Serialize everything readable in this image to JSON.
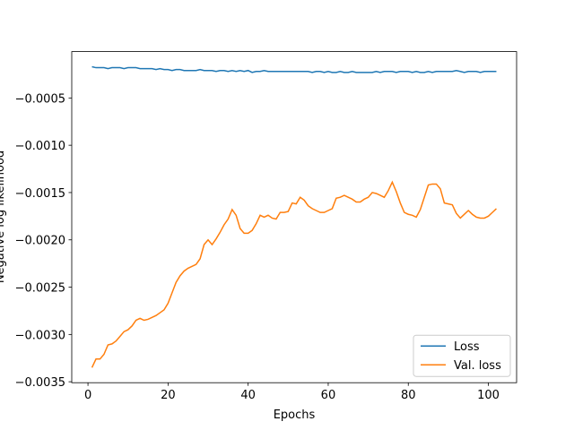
{
  "chart_data": {
    "type": "line",
    "x_label": "Epochs",
    "y_label": "Negative log likelihood",
    "x": [
      1,
      2,
      3,
      4,
      5,
      6,
      7,
      8,
      9,
      10,
      11,
      12,
      13,
      14,
      15,
      16,
      17,
      18,
      19,
      20,
      21,
      22,
      23,
      24,
      25,
      26,
      27,
      28,
      29,
      30,
      31,
      32,
      33,
      34,
      35,
      36,
      37,
      38,
      39,
      40,
      41,
      42,
      43,
      44,
      45,
      46,
      47,
      48,
      49,
      50,
      51,
      52,
      53,
      54,
      55,
      56,
      57,
      58,
      59,
      60,
      61,
      62,
      63,
      64,
      65,
      66,
      67,
      68,
      69,
      70,
      71,
      72,
      73,
      74,
      75,
      76,
      77,
      78,
      79,
      80,
      81,
      82,
      83,
      84,
      85,
      86,
      87,
      88,
      89,
      90,
      91,
      92,
      93,
      94,
      95,
      96,
      97,
      98,
      99,
      100,
      101,
      102
    ],
    "series": [
      {
        "name": "Loss",
        "color": "#1f77b4",
        "values": [
          -0.00017,
          -0.00018,
          -0.00018,
          -0.00018,
          -0.00019,
          -0.00018,
          -0.00018,
          -0.00018,
          -0.00019,
          -0.00018,
          -0.00018,
          -0.00018,
          -0.00019,
          -0.00019,
          -0.00019,
          -0.00019,
          -0.0002,
          -0.00019,
          -0.0002,
          -0.0002,
          -0.00021,
          -0.0002,
          -0.0002,
          -0.00021,
          -0.00021,
          -0.00021,
          -0.00021,
          -0.0002,
          -0.00021,
          -0.00021,
          -0.00021,
          -0.00022,
          -0.00021,
          -0.00021,
          -0.00022,
          -0.00021,
          -0.00022,
          -0.00021,
          -0.00022,
          -0.00021,
          -0.00023,
          -0.00022,
          -0.00022,
          -0.00021,
          -0.00022,
          -0.00022,
          -0.00022,
          -0.00022,
          -0.00022,
          -0.00022,
          -0.00022,
          -0.00022,
          -0.00022,
          -0.00022,
          -0.00022,
          -0.00023,
          -0.00022,
          -0.00022,
          -0.00023,
          -0.00022,
          -0.00023,
          -0.00023,
          -0.00022,
          -0.00023,
          -0.00023,
          -0.00022,
          -0.00023,
          -0.00023,
          -0.00023,
          -0.00023,
          -0.00023,
          -0.00022,
          -0.00023,
          -0.00022,
          -0.00022,
          -0.00022,
          -0.00023,
          -0.00022,
          -0.00022,
          -0.00022,
          -0.00023,
          -0.00022,
          -0.00023,
          -0.00023,
          -0.00022,
          -0.00023,
          -0.00022,
          -0.00022,
          -0.00022,
          -0.00022,
          -0.00022,
          -0.00021,
          -0.00022,
          -0.00023,
          -0.00022,
          -0.00022,
          -0.00022,
          -0.00023,
          -0.00022,
          -0.00022,
          -0.00022,
          -0.00022
        ]
      },
      {
        "name": "Val. loss",
        "color": "#ff7f0e",
        "values": [
          -0.00335,
          -0.00326,
          -0.00326,
          -0.00321,
          -0.00311,
          -0.0031,
          -0.00307,
          -0.00302,
          -0.00297,
          -0.00295,
          -0.00291,
          -0.00285,
          -0.00283,
          -0.00285,
          -0.00284,
          -0.00282,
          -0.0028,
          -0.00277,
          -0.00274,
          -0.00267,
          -0.00256,
          -0.00245,
          -0.00238,
          -0.00233,
          -0.0023,
          -0.00228,
          -0.00226,
          -0.0022,
          -0.00205,
          -0.002,
          -0.00205,
          -0.00199,
          -0.00192,
          -0.00184,
          -0.00178,
          -0.00168,
          -0.00174,
          -0.00188,
          -0.00193,
          -0.00193,
          -0.0019,
          -0.00183,
          -0.00174,
          -0.00176,
          -0.00174,
          -0.00177,
          -0.00178,
          -0.00171,
          -0.00171,
          -0.0017,
          -0.00161,
          -0.00162,
          -0.00155,
          -0.00158,
          -0.00164,
          -0.00167,
          -0.00169,
          -0.00171,
          -0.00171,
          -0.00169,
          -0.00167,
          -0.00156,
          -0.00155,
          -0.00153,
          -0.00155,
          -0.00157,
          -0.0016,
          -0.0016,
          -0.00157,
          -0.00155,
          -0.0015,
          -0.00151,
          -0.00153,
          -0.00155,
          -0.00148,
          -0.00139,
          -0.00149,
          -0.00161,
          -0.00171,
          -0.00173,
          -0.00174,
          -0.00176,
          -0.00168,
          -0.00155,
          -0.00142,
          -0.00141,
          -0.00141,
          -0.00146,
          -0.00161,
          -0.00162,
          -0.00163,
          -0.00172,
          -0.00177,
          -0.00173,
          -0.00169,
          -0.00173,
          -0.00176,
          -0.00177,
          -0.00177,
          -0.00175,
          -0.00171,
          -0.00167
        ]
      }
    ],
    "xlim": [
      -4.05,
      107.05
    ],
    "ylim": [
      -0.00351,
      -1e-05
    ],
    "xticks": [
      0,
      20,
      40,
      60,
      80,
      100
    ],
    "yticks": [
      {
        "value": -0.0035,
        "label": "−0.0035"
      },
      {
        "value": -0.003,
        "label": "−0.0030"
      },
      {
        "value": -0.0025,
        "label": "−0.0025"
      },
      {
        "value": -0.002,
        "label": "−0.0020"
      },
      {
        "value": -0.0015,
        "label": "−0.0015"
      },
      {
        "value": -0.001,
        "label": "−0.0010"
      },
      {
        "value": -0.0005,
        "label": "−0.0005"
      }
    ],
    "legend": "lower right"
  }
}
